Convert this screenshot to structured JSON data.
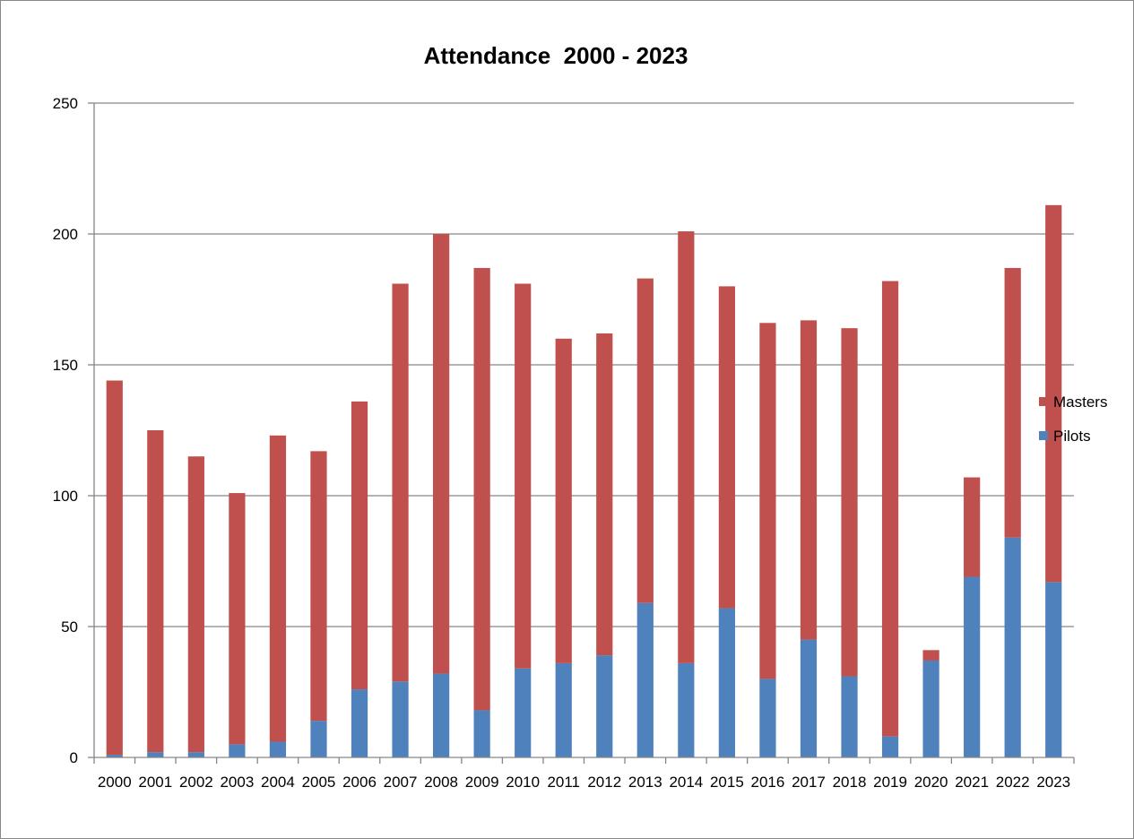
{
  "chart_data": {
    "type": "bar",
    "stacked": true,
    "title": "Attendance  2000 - 2023",
    "xlabel": "",
    "ylabel": "",
    "ylim": [
      0,
      250
    ],
    "yticks": [
      0,
      50,
      100,
      150,
      200,
      250
    ],
    "grid": true,
    "legend": "right",
    "categories": [
      "2000",
      "2001",
      "2002",
      "2003",
      "2004",
      "2005",
      "2006",
      "2007",
      "2008",
      "2009",
      "2010",
      "2011",
      "2012",
      "2013",
      "2014",
      "2015",
      "2016",
      "2017",
      "2018",
      "2019",
      "2020",
      "2021",
      "2022",
      "2023"
    ],
    "series": [
      {
        "name": "Pilots",
        "color": "#4F81BD",
        "values": [
          1,
          2,
          2,
          5,
          6,
          14,
          26,
          29,
          32,
          18,
          34,
          36,
          39,
          59,
          36,
          57,
          30,
          45,
          31,
          8,
          37,
          69,
          84,
          67
        ]
      },
      {
        "name": "Masters",
        "color": "#C0504D",
        "values": [
          143,
          123,
          113,
          96,
          117,
          103,
          110,
          152,
          168,
          169,
          147,
          124,
          123,
          124,
          165,
          123,
          136,
          122,
          133,
          174,
          4,
          38,
          103,
          144
        ]
      }
    ]
  }
}
